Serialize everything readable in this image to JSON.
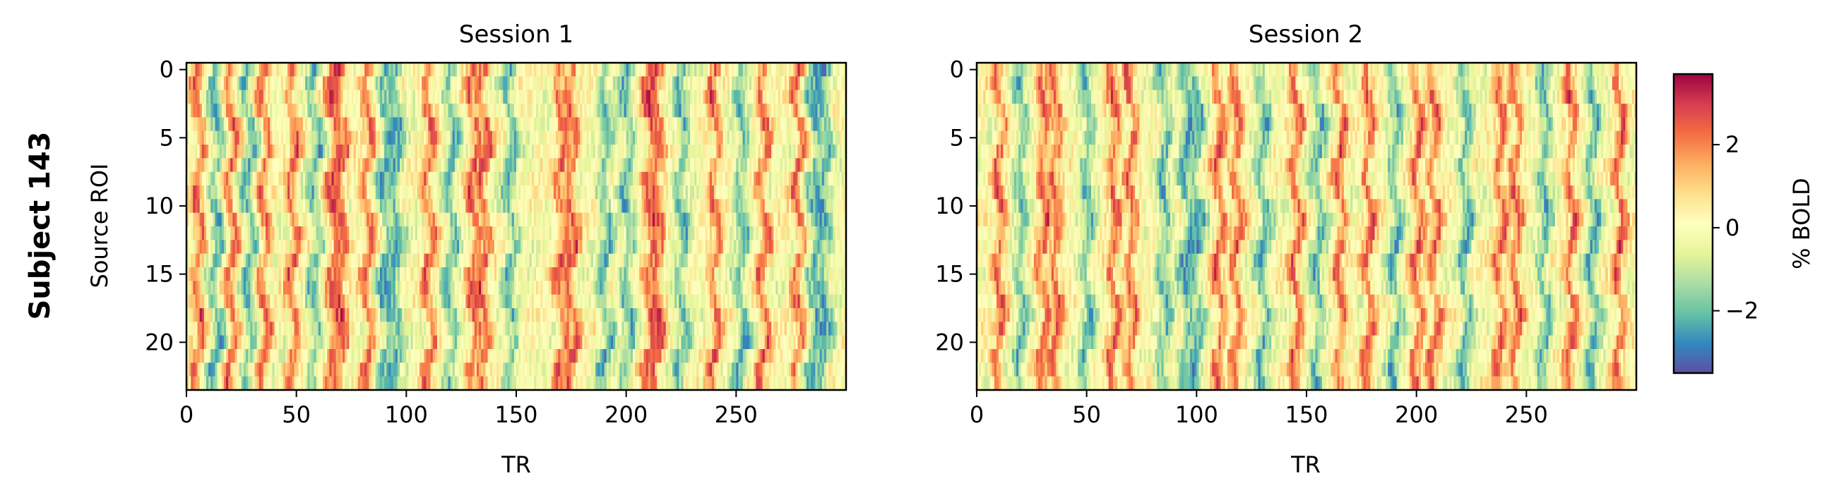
{
  "figure": {
    "row_label": "Subject 143",
    "colorbar_label": "% BOLD",
    "colormap": "Spectral_r",
    "colorbar_range": [
      -3.5,
      3.7
    ],
    "colorbar_ticks": [
      -2,
      0,
      2
    ],
    "colorbar_tick_labels": [
      "−2",
      "0",
      "2"
    ]
  },
  "chart_data": [
    {
      "type": "heatmap",
      "title": "Session 1",
      "xlabel": "TR",
      "ylabel": "Source ROI",
      "n_rows": 24,
      "n_cols": 300,
      "xlim": [
        0,
        299
      ],
      "ylim": [
        23,
        0
      ],
      "xticks": [
        0,
        50,
        100,
        150,
        200,
        250
      ],
      "yticks": [
        0,
        5,
        10,
        15,
        20
      ],
      "value_range": [
        -3.5,
        3.7
      ],
      "positive_bands_TR": [
        5,
        20,
        35,
        48,
        66,
        70,
        82,
        110,
        130,
        135,
        170,
        175,
        210,
        214,
        240,
        262,
        278
      ],
      "negative_bands_TR": [
        13,
        28,
        58,
        90,
        95,
        120,
        147,
        190,
        200,
        225,
        252,
        285,
        290
      ]
    },
    {
      "type": "heatmap",
      "title": "Session 2",
      "xlabel": "TR",
      "ylabel": "",
      "n_rows": 24,
      "n_cols": 300,
      "xlim": [
        0,
        299
      ],
      "ylim": [
        23,
        0
      ],
      "xticks": [
        0,
        50,
        100,
        150,
        200,
        250
      ],
      "yticks": [
        0,
        5,
        10,
        15,
        20
      ],
      "value_range": [
        -3.5,
        3.7
      ],
      "positive_bands_TR": [
        10,
        30,
        36,
        62,
        70,
        110,
        118,
        145,
        165,
        178,
        200,
        208,
        238,
        245,
        270,
        292
      ],
      "negative_bands_TR": [
        20,
        50,
        85,
        95,
        100,
        130,
        155,
        190,
        222,
        258,
        280
      ]
    }
  ]
}
